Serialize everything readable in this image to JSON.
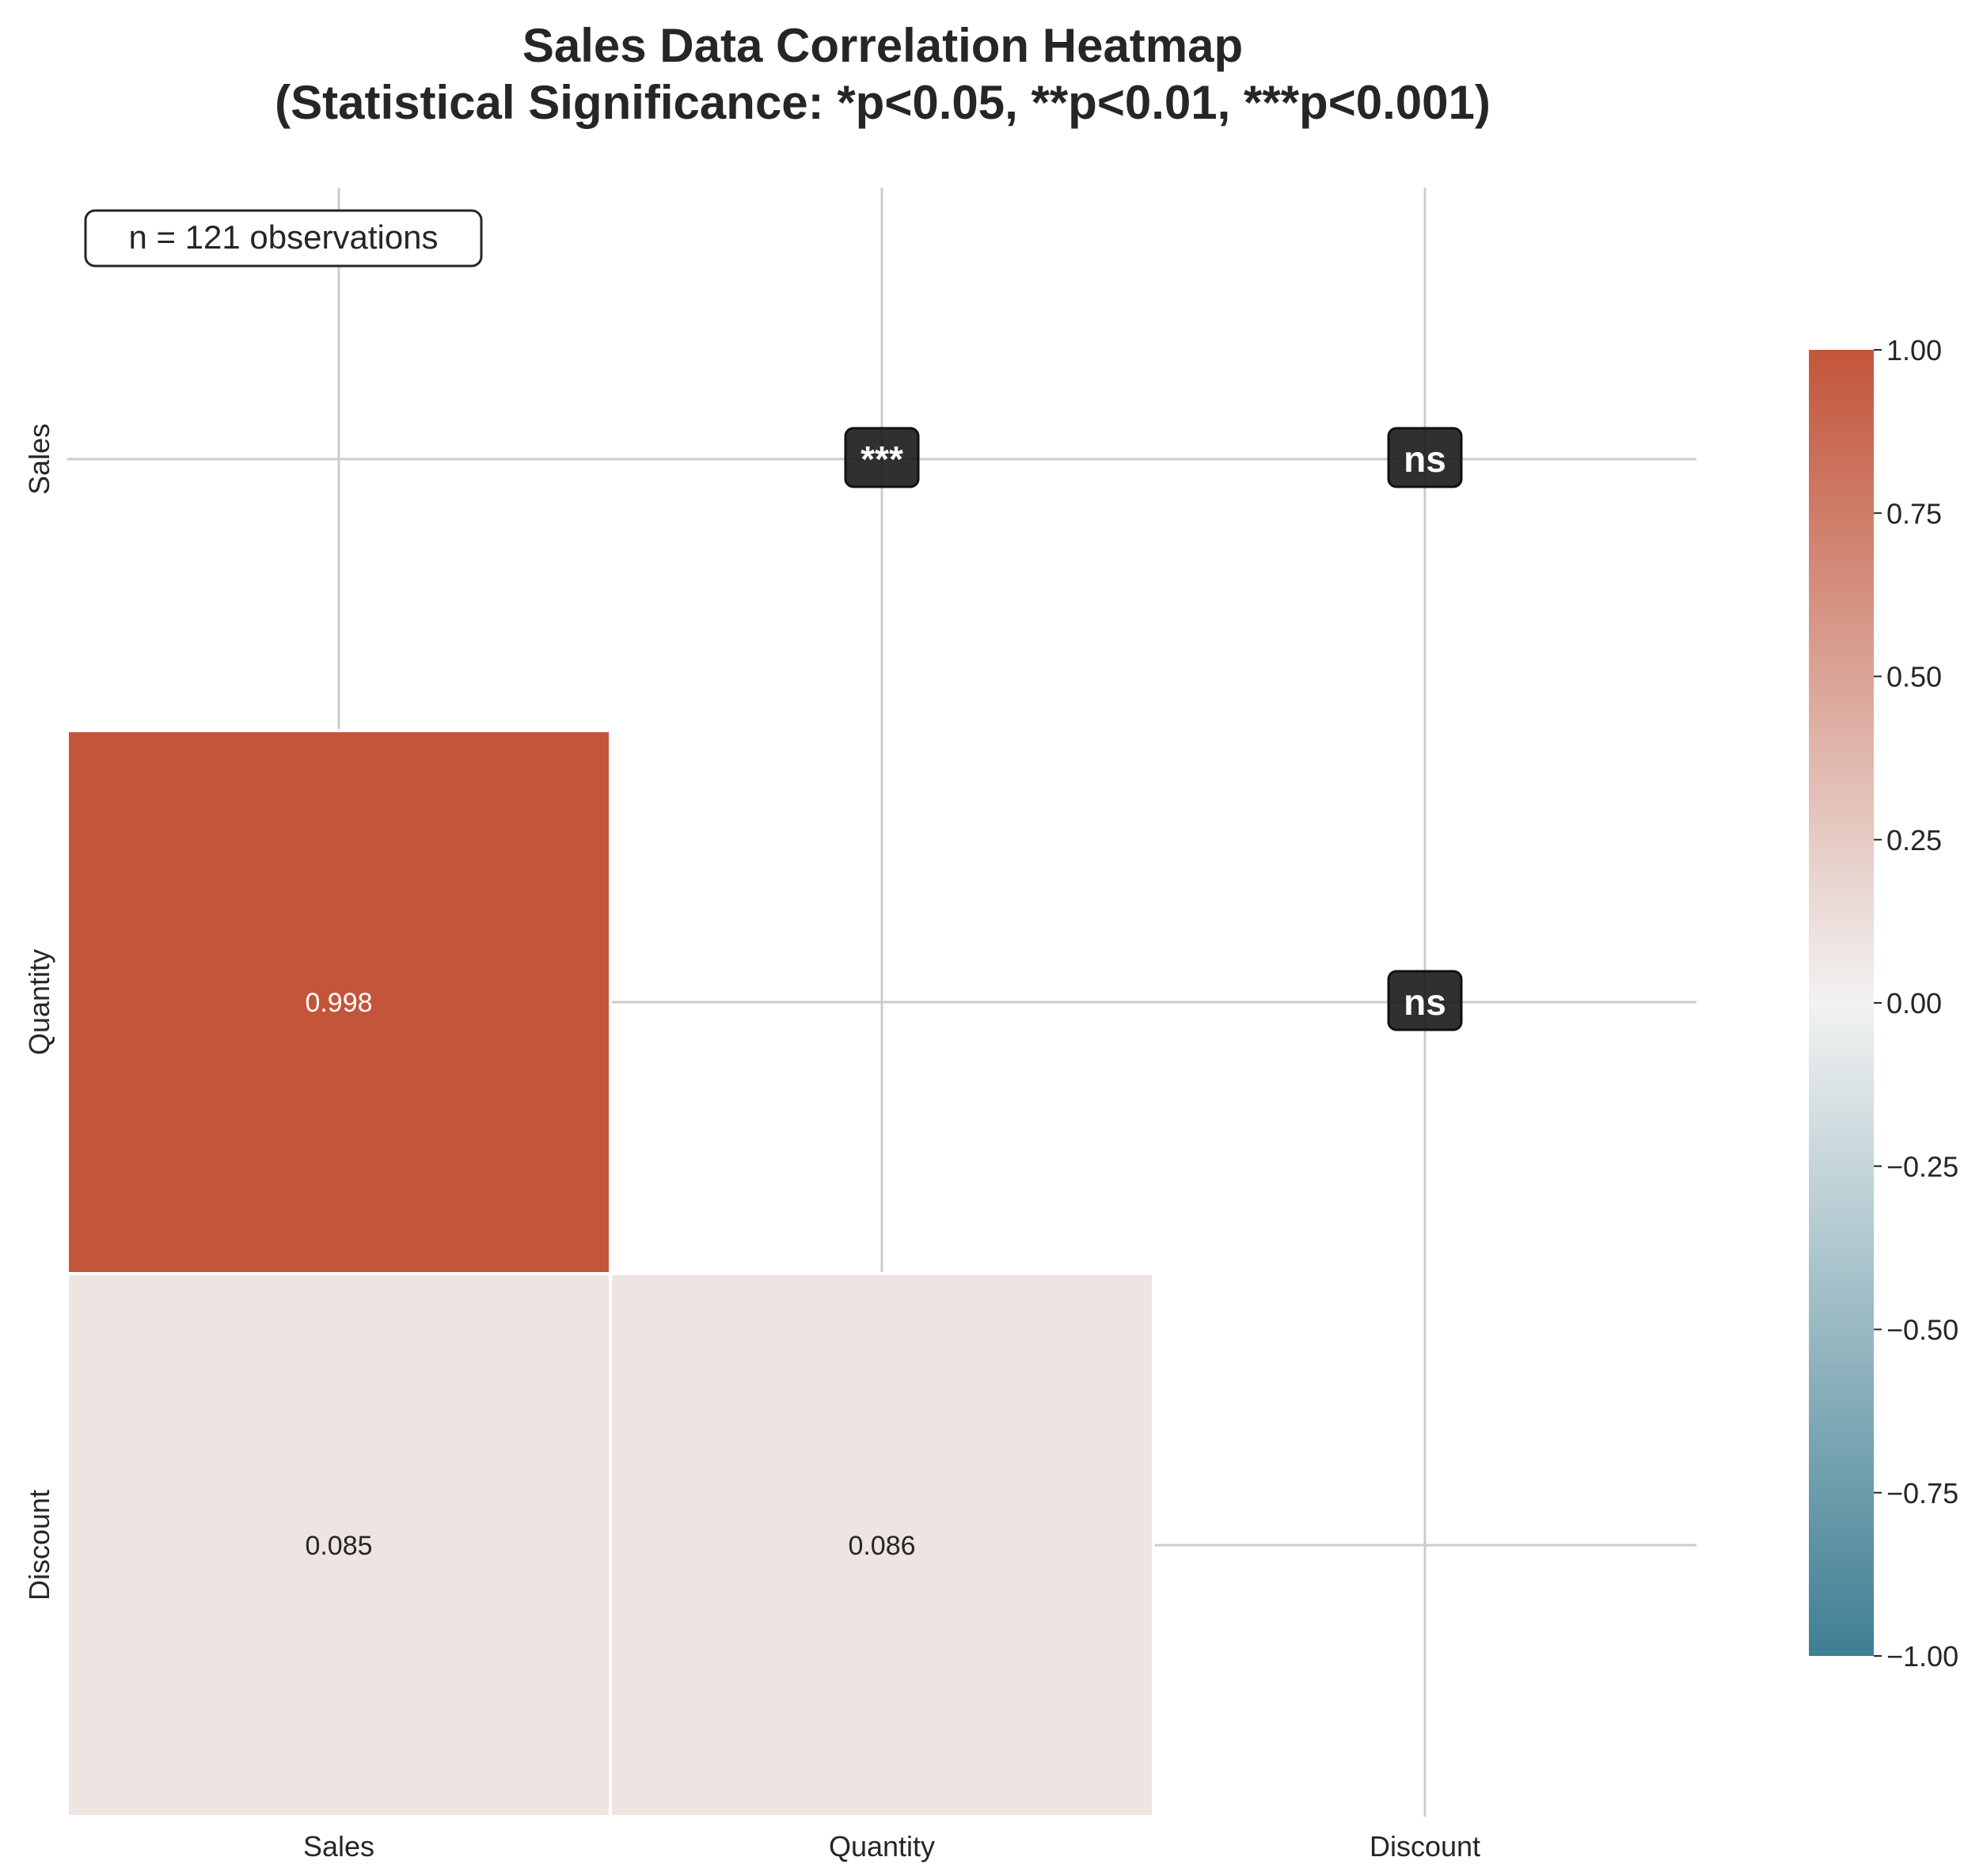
{
  "chart_data": {
    "type": "heatmap",
    "title_lines": [
      "Sales Data Correlation Heatmap",
      "(Statistical Significance: *p<0.05, **p<0.01, ***p<0.001)"
    ],
    "xlabel": "",
    "ylabel": "",
    "variables": [
      "Sales",
      "Quantity",
      "Discount"
    ],
    "lower_triangle": [
      {
        "row": "Quantity",
        "col": "Sales",
        "value": 0.998,
        "label": "0.998"
      },
      {
        "row": "Discount",
        "col": "Sales",
        "value": 0.085,
        "label": "0.085"
      },
      {
        "row": "Discount",
        "col": "Quantity",
        "value": 0.086,
        "label": "0.086"
      }
    ],
    "significance": [
      {
        "row": "Sales",
        "col": "Quantity",
        "label": "***"
      },
      {
        "row": "Sales",
        "col": "Discount",
        "label": "ns"
      },
      {
        "row": "Quantity",
        "col": "Discount",
        "label": "ns"
      }
    ],
    "annotation": "n = 121 observations",
    "colorbar": {
      "range": [
        -1.0,
        1.0
      ],
      "ticks": [
        "1.00",
        "0.75",
        "0.50",
        "0.25",
        "0.00",
        "−0.25",
        "−0.50",
        "−0.75",
        "−1.00"
      ],
      "colors": {
        "low": "#3f7f93",
        "mid": "#f2f2f2",
        "high": "#c3553a"
      }
    },
    "grid": true
  }
}
